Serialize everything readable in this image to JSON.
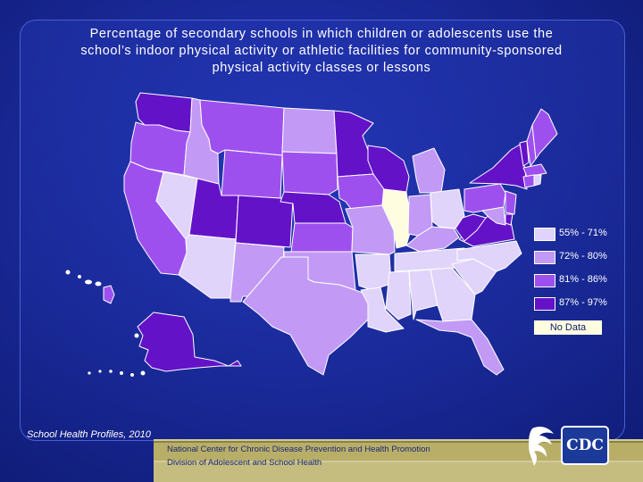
{
  "title": {
    "line1": "Percentage of secondary schools in which children or adolescents use the",
    "line2": "school’s indoor physical activity or athletic facilities for community-sponsored",
    "line3": "physical activity classes or lessons"
  },
  "colors": {
    "c1": "#e0d4fb",
    "c2": "#c29af5",
    "c3": "#9e50ef",
    "c4": "#6412c8",
    "nodata": "#fffde0"
  },
  "legend": [
    {
      "label": "55% - 71%",
      "color": "#e0d4fb"
    },
    {
      "label": "72% - 80%",
      "color": "#c29af5"
    },
    {
      "label": "81% - 86%",
      "color": "#9e50ef"
    },
    {
      "label": "87% - 97%",
      "color": "#6412c8"
    }
  ],
  "no_data_label": "No Data",
  "source": "School Health Profiles, 2010",
  "footer": {
    "line1": "National Center for Chronic Disease Prevention and Health Promotion",
    "line2": "Division of Adolescent and School Health"
  },
  "cdc_logo_text": "CDC",
  "map_data": {
    "WA": "c4",
    "OR": "c3",
    "CA": "c3",
    "NV": "c1",
    "ID": "c2",
    "MT": "c3",
    "WY": "c3",
    "UT": "c4",
    "AZ": "c1",
    "CO": "c4",
    "NM": "c2",
    "ND": "c2",
    "SD": "c3",
    "NE": "c4",
    "KS": "c3",
    "OK": "c2",
    "TX": "c2",
    "MN": "c4",
    "IA": "c3",
    "MO": "c2",
    "AR": "c1",
    "LA": "c1",
    "WI": "c4",
    "IL": "nodata",
    "MI": "c2",
    "IN": "c2",
    "OH": "c1",
    "KY": "c2",
    "TN": "c1",
    "MS": "c1",
    "AL": "c1",
    "GA": "c1",
    "FL": "c2",
    "SC": "c1",
    "NC": "c1",
    "VA": "c4",
    "WV": "c4",
    "PA": "c3",
    "NY": "c4",
    "VT": "c4",
    "NH": "c3",
    "ME": "c3",
    "MA": "c3",
    "CT": "c3",
    "RI": "c1",
    "NJ": "c3",
    "DE": "c4",
    "MD": "c2",
    "AK": "c4",
    "HI": "c3"
  }
}
